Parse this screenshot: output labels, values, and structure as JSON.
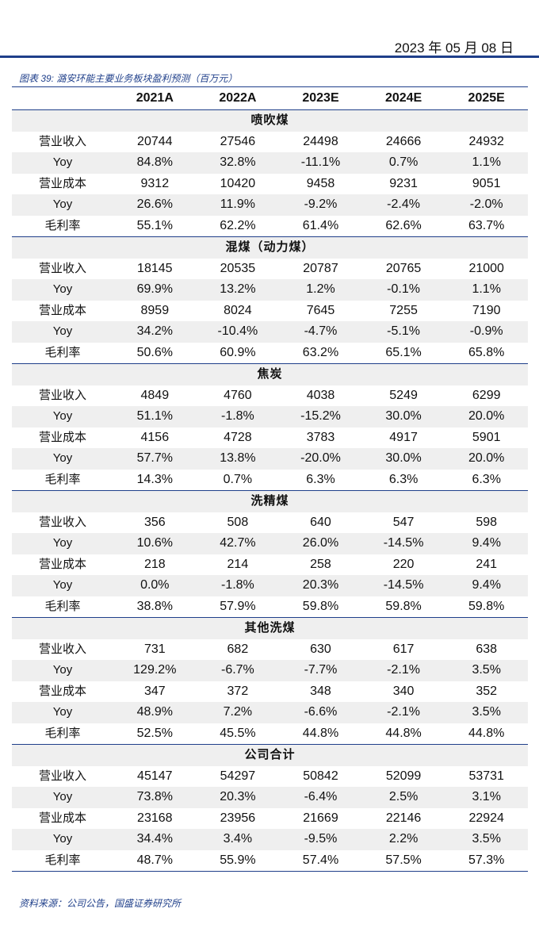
{
  "header": {
    "date": "2023 年 05 月 08 日"
  },
  "caption": "图表 39: 潞安环能主要业务板块盈利预测（百万元）",
  "columns": [
    "",
    "2021A",
    "2022A",
    "2023E",
    "2024E",
    "2025E"
  ],
  "sections": [
    {
      "title": "喷吹煤",
      "rows": [
        {
          "label": "营业收入",
          "values": [
            "20744",
            "27546",
            "24498",
            "24666",
            "24932"
          ]
        },
        {
          "label": "Yoy",
          "values": [
            "84.8%",
            "32.8%",
            "-11.1%",
            "0.7%",
            "1.1%"
          ]
        },
        {
          "label": "营业成本",
          "values": [
            "9312",
            "10420",
            "9458",
            "9231",
            "9051"
          ]
        },
        {
          "label": "Yoy",
          "values": [
            "26.6%",
            "11.9%",
            "-9.2%",
            "-2.4%",
            "-2.0%"
          ]
        },
        {
          "label": "毛利率",
          "values": [
            "55.1%",
            "62.2%",
            "61.4%",
            "62.6%",
            "63.7%"
          ]
        }
      ]
    },
    {
      "title": "混煤（动力煤）",
      "rows": [
        {
          "label": "营业收入",
          "values": [
            "18145",
            "20535",
            "20787",
            "20765",
            "21000"
          ]
        },
        {
          "label": "Yoy",
          "values": [
            "69.9%",
            "13.2%",
            "1.2%",
            "-0.1%",
            "1.1%"
          ]
        },
        {
          "label": "营业成本",
          "values": [
            "8959",
            "8024",
            "7645",
            "7255",
            "7190"
          ]
        },
        {
          "label": "Yoy",
          "values": [
            "34.2%",
            "-10.4%",
            "-4.7%",
            "-5.1%",
            "-0.9%"
          ]
        },
        {
          "label": "毛利率",
          "values": [
            "50.6%",
            "60.9%",
            "63.2%",
            "65.1%",
            "65.8%"
          ]
        }
      ]
    },
    {
      "title": "焦炭",
      "rows": [
        {
          "label": "营业收入",
          "values": [
            "4849",
            "4760",
            "4038",
            "5249",
            "6299"
          ]
        },
        {
          "label": "Yoy",
          "values": [
            "51.1%",
            "-1.8%",
            "-15.2%",
            "30.0%",
            "20.0%"
          ]
        },
        {
          "label": "营业成本",
          "values": [
            "4156",
            "4728",
            "3783",
            "4917",
            "5901"
          ]
        },
        {
          "label": "Yoy",
          "values": [
            "57.7%",
            "13.8%",
            "-20.0%",
            "30.0%",
            "20.0%"
          ]
        },
        {
          "label": "毛利率",
          "values": [
            "14.3%",
            "0.7%",
            "6.3%",
            "6.3%",
            "6.3%"
          ]
        }
      ]
    },
    {
      "title": "洗精煤",
      "rows": [
        {
          "label": "营业收入",
          "values": [
            "356",
            "508",
            "640",
            "547",
            "598"
          ]
        },
        {
          "label": "Yoy",
          "values": [
            "10.6%",
            "42.7%",
            "26.0%",
            "-14.5%",
            "9.4%"
          ]
        },
        {
          "label": "营业成本",
          "values": [
            "218",
            "214",
            "258",
            "220",
            "241"
          ]
        },
        {
          "label": "Yoy",
          "values": [
            "0.0%",
            "-1.8%",
            "20.3%",
            "-14.5%",
            "9.4%"
          ]
        },
        {
          "label": "毛利率",
          "values": [
            "38.8%",
            "57.9%",
            "59.8%",
            "59.8%",
            "59.8%"
          ]
        }
      ]
    },
    {
      "title": "其他洗煤",
      "rows": [
        {
          "label": "营业收入",
          "values": [
            "731",
            "682",
            "630",
            "617",
            "638"
          ]
        },
        {
          "label": "Yoy",
          "values": [
            "129.2%",
            "-6.7%",
            "-7.7%",
            "-2.1%",
            "3.5%"
          ]
        },
        {
          "label": "营业成本",
          "values": [
            "347",
            "372",
            "348",
            "340",
            "352"
          ]
        },
        {
          "label": "Yoy",
          "values": [
            "48.9%",
            "7.2%",
            "-6.6%",
            "-2.1%",
            "3.5%"
          ]
        },
        {
          "label": "毛利率",
          "values": [
            "52.5%",
            "45.5%",
            "44.8%",
            "44.8%",
            "44.8%"
          ]
        }
      ]
    },
    {
      "title": "公司合计",
      "rows": [
        {
          "label": "营业收入",
          "values": [
            "45147",
            "54297",
            "50842",
            "52099",
            "53731"
          ]
        },
        {
          "label": "Yoy",
          "values": [
            "73.8%",
            "20.3%",
            "-6.4%",
            "2.5%",
            "3.1%"
          ]
        },
        {
          "label": "营业成本",
          "values": [
            "23168",
            "23956",
            "21669",
            "22146",
            "22924"
          ]
        },
        {
          "label": "Yoy",
          "values": [
            "34.4%",
            "3.4%",
            "-9.5%",
            "2.2%",
            "3.5%"
          ]
        },
        {
          "label": "毛利率",
          "values": [
            "48.7%",
            "55.9%",
            "57.4%",
            "57.5%",
            "57.3%"
          ]
        }
      ]
    }
  ],
  "source": "资料来源：公司公告，国盛证券研究所"
}
